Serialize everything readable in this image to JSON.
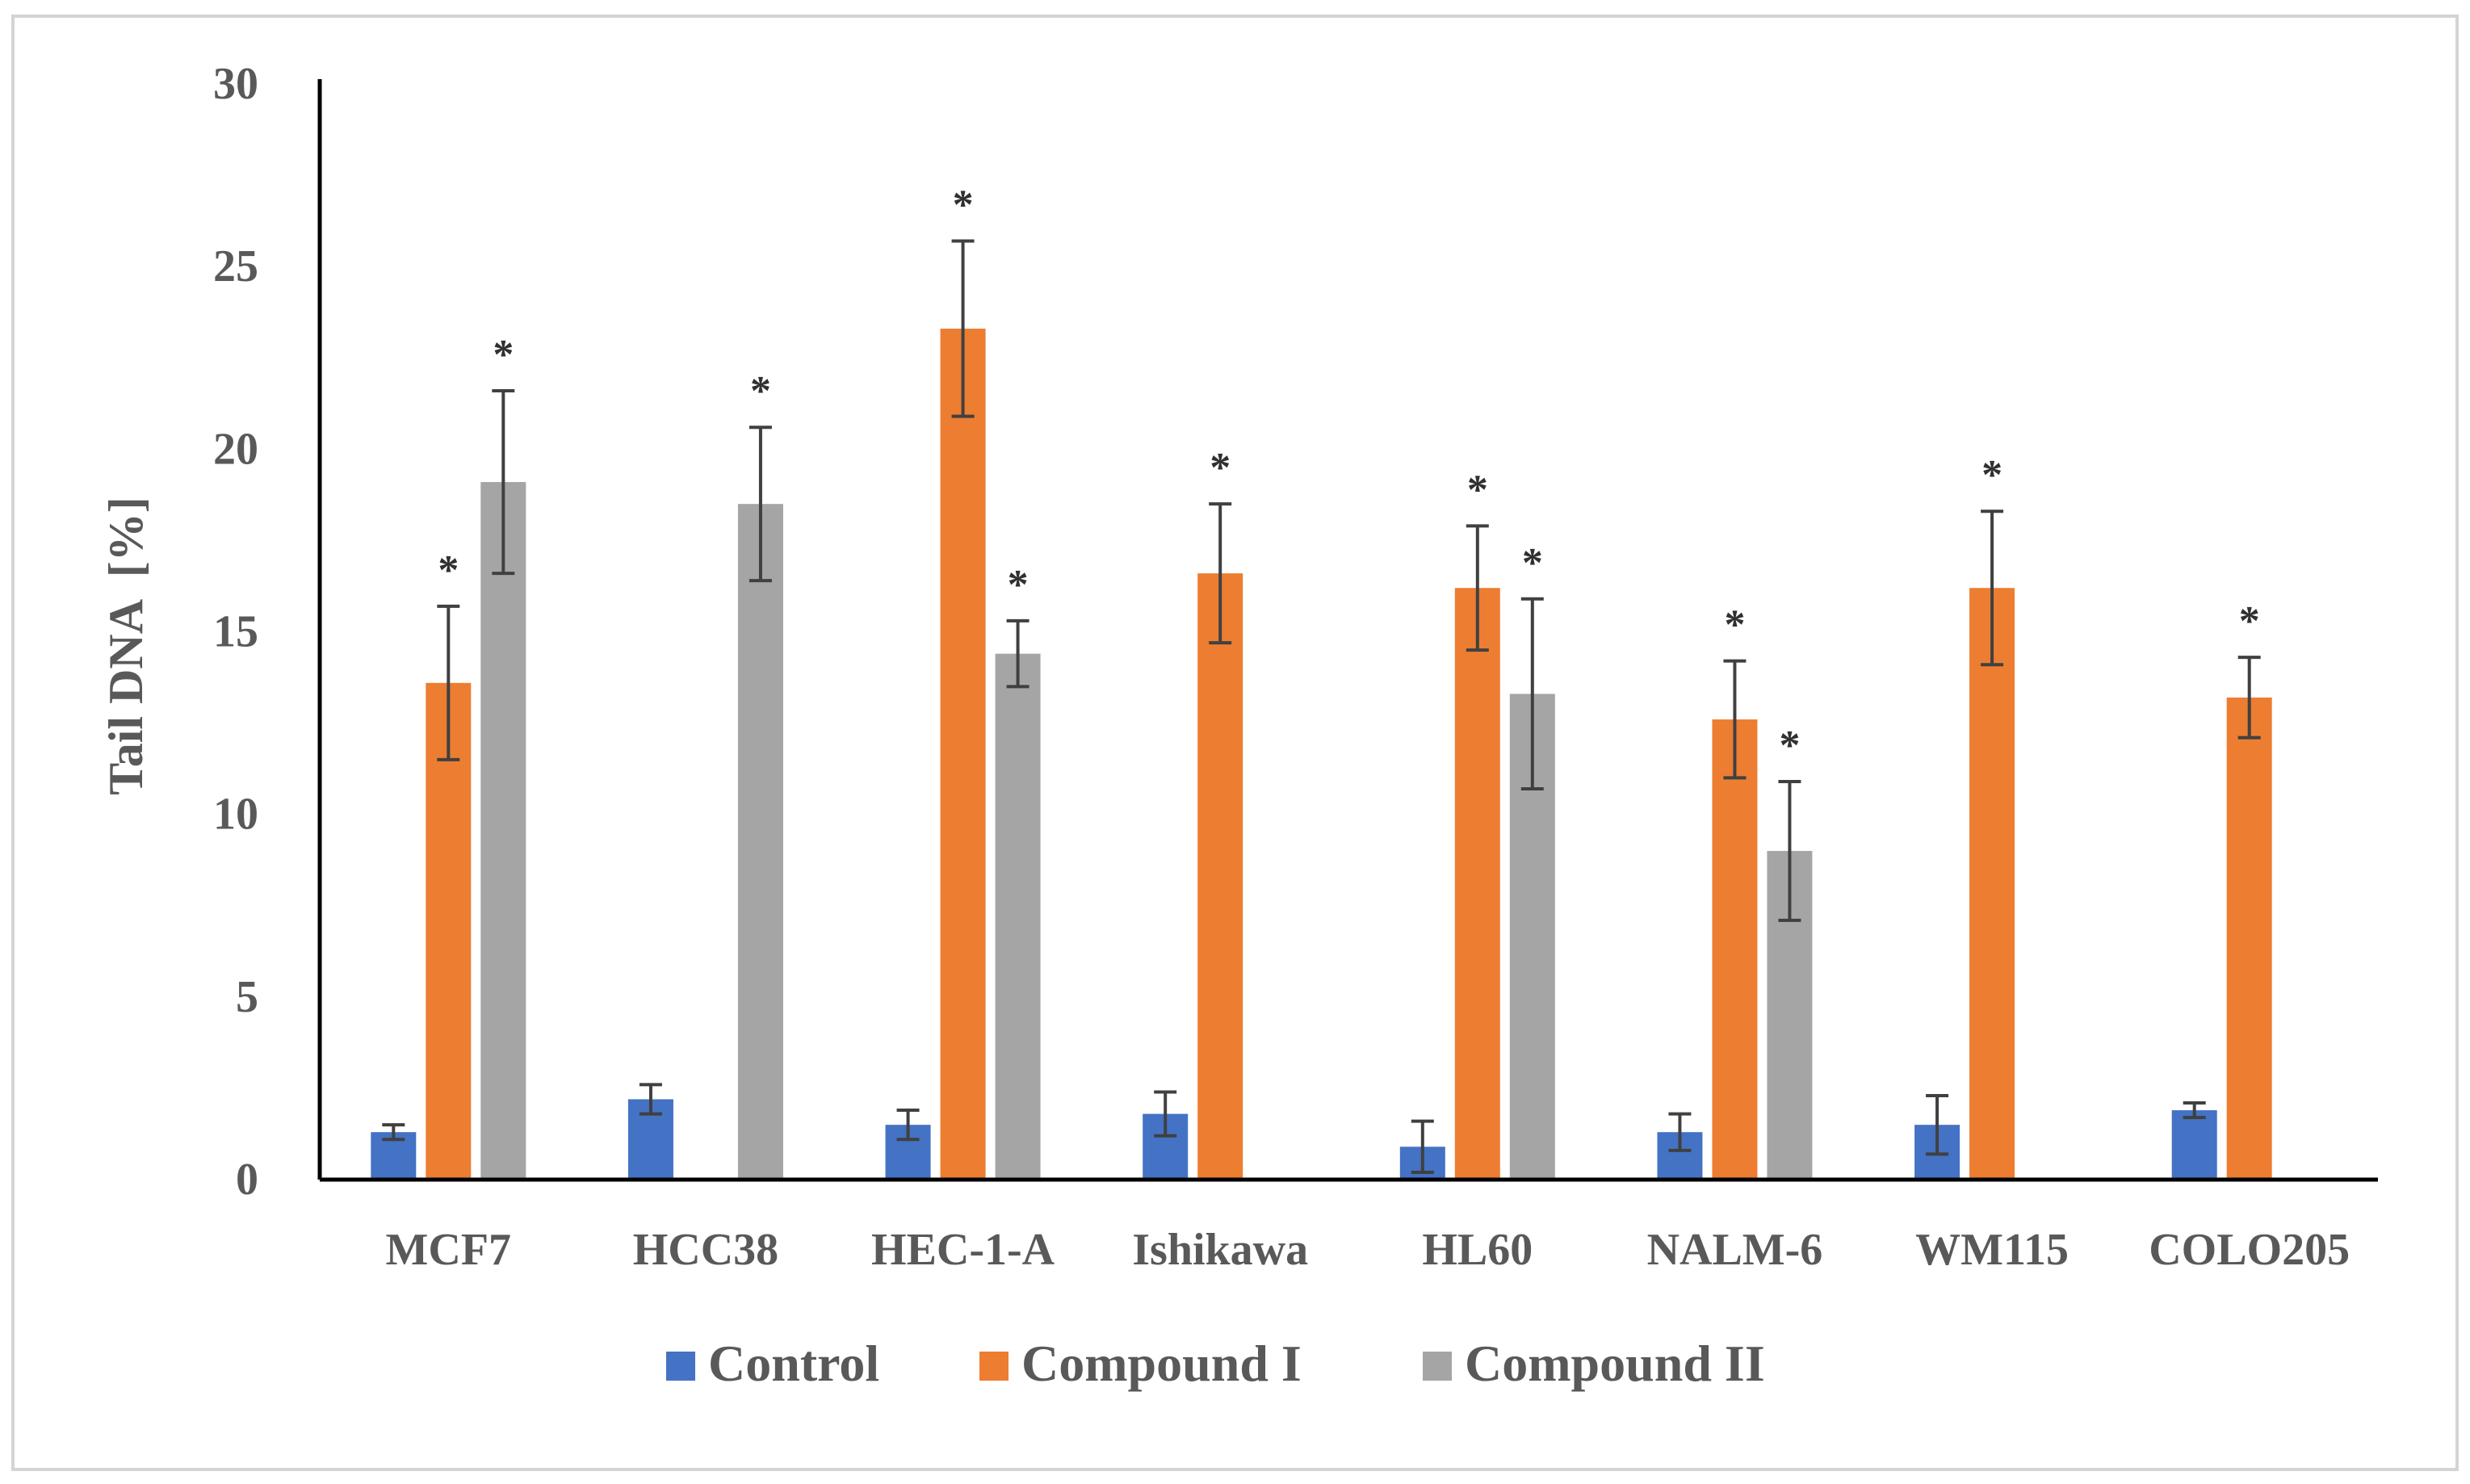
{
  "chart_data": {
    "type": "bar",
    "title": "",
    "xlabel": "",
    "ylabel": "Tail DNA  [%]",
    "ylim": [
      0,
      30
    ],
    "yticks": [
      "0",
      "5",
      "10",
      "15",
      "20",
      "25",
      "30"
    ],
    "grid": false,
    "legend_position": "bottom",
    "categories": [
      "MCF7",
      "HCC38",
      "HEC-1-A",
      "Ishikawa",
      "HL60",
      "NALM-6",
      "WM115",
      "COLO205"
    ],
    "series": [
      {
        "name": "Control",
        "color": "#4472c4",
        "values": [
          1.3,
          2.2,
          1.5,
          1.8,
          0.9,
          1.3,
          1.5,
          1.9
        ],
        "errors": [
          0.2,
          0.4,
          0.4,
          0.6,
          0.7,
          0.5,
          0.8,
          0.2
        ],
        "significant": [
          false,
          false,
          false,
          false,
          false,
          false,
          false,
          false
        ]
      },
      {
        "name": "Compound I",
        "color": "#ed7d31",
        "values": [
          13.6,
          null,
          23.3,
          16.6,
          16.2,
          12.6,
          16.2,
          13.2
        ],
        "errors": [
          2.1,
          null,
          2.4,
          1.9,
          1.7,
          1.6,
          2.1,
          1.1
        ],
        "significant": [
          true,
          false,
          true,
          true,
          true,
          true,
          true,
          true
        ]
      },
      {
        "name": "Compound II",
        "color": "#a5a5a5",
        "values": [
          19.1,
          18.5,
          14.4,
          null,
          13.3,
          9.0,
          null,
          null
        ],
        "errors": [
          2.5,
          2.1,
          0.9,
          null,
          2.6,
          1.9,
          null,
          null
        ],
        "significant": [
          true,
          true,
          true,
          false,
          true,
          true,
          false,
          false
        ]
      }
    ],
    "annotations": {
      "significance_marker": "*"
    }
  }
}
